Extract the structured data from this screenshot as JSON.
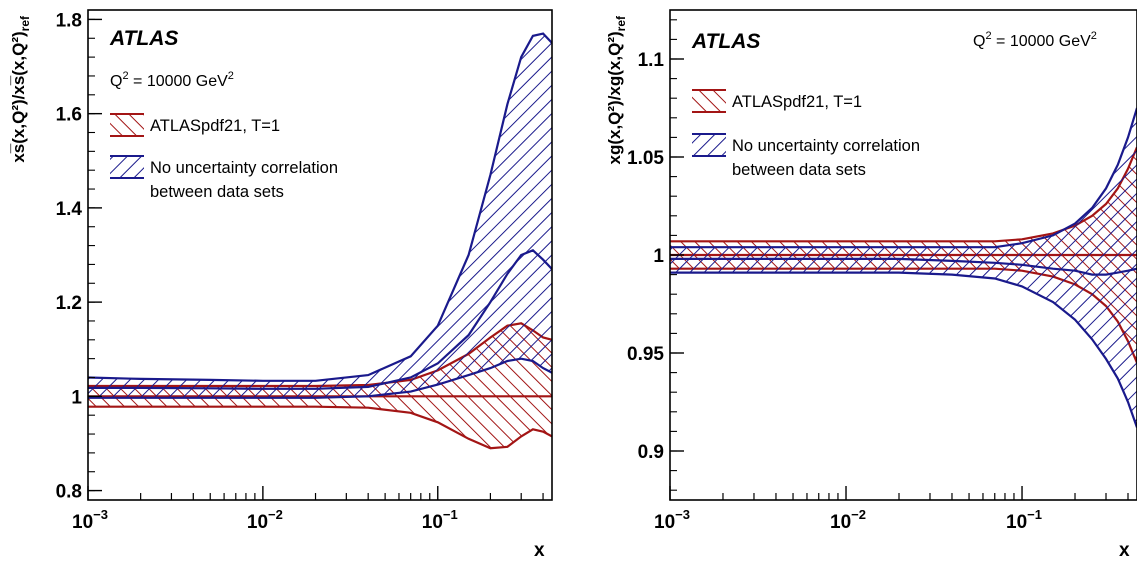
{
  "chart_data": [
    {
      "type": "area",
      "title": "",
      "xlabel": "x",
      "ylabel": "xs̅(x,Q²)/xs̅(x,Q²)",
      "ylabel_ref": "ref",
      "xscale": "log",
      "xlim": [
        0.001,
        0.45
      ],
      "ylim": [
        0.78,
        1.82
      ],
      "x_ticks": [
        "10",
        "10",
        "10"
      ],
      "x_tick_exp": [
        "−3",
        "−2",
        "−1"
      ],
      "y_ticks": [
        "0.8",
        "1",
        "1.2",
        "1.4",
        "1.6",
        "1.8"
      ],
      "grid": false,
      "legend_position": "top-left",
      "annotations": {
        "experiment": "ATLAS",
        "q2_label": "Q",
        "q2_sup": "2",
        "q2_value": " = 10000 GeV",
        "q2_unit_sup": "2"
      },
      "series": [
        {
          "name": "ATLASpdf21, T=1",
          "color": "#a31515",
          "x": [
            0.001,
            0.002,
            0.005,
            0.01,
            0.02,
            0.04,
            0.07,
            0.1,
            0.15,
            0.2,
            0.25,
            0.3,
            0.35,
            0.4,
            0.45
          ],
          "upper": [
            1.022,
            1.022,
            1.022,
            1.022,
            1.022,
            1.024,
            1.035,
            1.055,
            1.09,
            1.125,
            1.15,
            1.155,
            1.14,
            1.125,
            1.12
          ],
          "lower": [
            0.978,
            0.978,
            0.978,
            0.978,
            0.978,
            0.976,
            0.965,
            0.945,
            0.91,
            0.89,
            0.893,
            0.915,
            0.93,
            0.925,
            0.915
          ],
          "central": [
            1.0,
            1.0,
            1.0,
            1.0,
            1.0,
            1.0,
            1.0,
            1.0,
            1.0,
            1.0,
            1.0,
            1.0,
            1.0,
            1.0,
            1.0
          ]
        },
        {
          "name": "No uncertainty correlation between data sets",
          "name_lines": [
            "No uncertainty correlation",
            "between data sets"
          ],
          "color": "#1a1a8c",
          "x": [
            0.001,
            0.002,
            0.005,
            0.01,
            0.02,
            0.04,
            0.07,
            0.1,
            0.15,
            0.2,
            0.25,
            0.3,
            0.35,
            0.4,
            0.45
          ],
          "upper": [
            1.04,
            1.037,
            1.035,
            1.033,
            1.033,
            1.045,
            1.085,
            1.15,
            1.3,
            1.47,
            1.62,
            1.72,
            1.765,
            1.77,
            1.75
          ],
          "lower": [
            0.997,
            0.997,
            0.997,
            0.997,
            0.997,
            1.0,
            1.01,
            1.025,
            1.045,
            1.06,
            1.075,
            1.08,
            1.075,
            1.06,
            1.05
          ],
          "central": [
            1.018,
            1.018,
            1.017,
            1.016,
            1.016,
            1.02,
            1.04,
            1.07,
            1.13,
            1.2,
            1.26,
            1.3,
            1.31,
            1.29,
            1.27
          ]
        }
      ]
    },
    {
      "type": "area",
      "title": "",
      "xlabel": "x",
      "ylabel": "xg(x,Q²)/xg(x,Q²)",
      "ylabel_ref": "ref",
      "xscale": "log",
      "xlim": [
        0.001,
        0.45
      ],
      "ylim": [
        0.875,
        1.125
      ],
      "x_ticks": [
        "10",
        "10",
        "10"
      ],
      "x_tick_exp": [
        "−3",
        "−2",
        "−1"
      ],
      "y_ticks": [
        "0.9",
        "0.95",
        "1",
        "1.05",
        "1.1"
      ],
      "grid": false,
      "legend_position": "top-left",
      "annotations": {
        "experiment": "ATLAS",
        "q2_label": "Q",
        "q2_sup": "2",
        "q2_value": " = 10000 GeV",
        "q2_unit_sup": "2"
      },
      "series": [
        {
          "name": "ATLASpdf21, T=1",
          "color": "#a31515",
          "x": [
            0.001,
            0.002,
            0.005,
            0.01,
            0.02,
            0.04,
            0.07,
            0.1,
            0.15,
            0.2,
            0.25,
            0.3,
            0.35,
            0.4,
            0.45
          ],
          "upper": [
            1.007,
            1.007,
            1.007,
            1.007,
            1.007,
            1.007,
            1.007,
            1.008,
            1.011,
            1.015,
            1.02,
            1.026,
            1.034,
            1.044,
            1.055
          ],
          "lower": [
            0.993,
            0.993,
            0.993,
            0.993,
            0.993,
            0.993,
            0.993,
            0.992,
            0.989,
            0.985,
            0.98,
            0.974,
            0.966,
            0.956,
            0.945
          ],
          "central": [
            1.0,
            1.0,
            1.0,
            1.0,
            1.0,
            1.0,
            1.0,
            1.0,
            1.0,
            1.0,
            1.0,
            1.0,
            1.0,
            1.0,
            1.0
          ]
        },
        {
          "name": "No uncertainty correlation between data sets",
          "name_lines": [
            "No uncertainty correlation",
            "between data sets"
          ],
          "color": "#1a1a8c",
          "x": [
            0.001,
            0.002,
            0.005,
            0.01,
            0.02,
            0.04,
            0.07,
            0.1,
            0.15,
            0.2,
            0.25,
            0.3,
            0.35,
            0.4,
            0.45
          ],
          "upper": [
            1.004,
            1.004,
            1.004,
            1.004,
            1.004,
            1.004,
            1.004,
            1.006,
            1.01,
            1.016,
            1.024,
            1.034,
            1.046,
            1.06,
            1.075
          ],
          "lower": [
            0.991,
            0.991,
            0.991,
            0.991,
            0.991,
            0.99,
            0.988,
            0.984,
            0.976,
            0.967,
            0.957,
            0.947,
            0.937,
            0.925,
            0.912
          ],
          "central": [
            0.998,
            0.998,
            0.998,
            0.998,
            0.998,
            0.997,
            0.996,
            0.995,
            0.993,
            0.992,
            0.99,
            0.99,
            0.991,
            0.992,
            0.993
          ]
        }
      ]
    }
  ]
}
